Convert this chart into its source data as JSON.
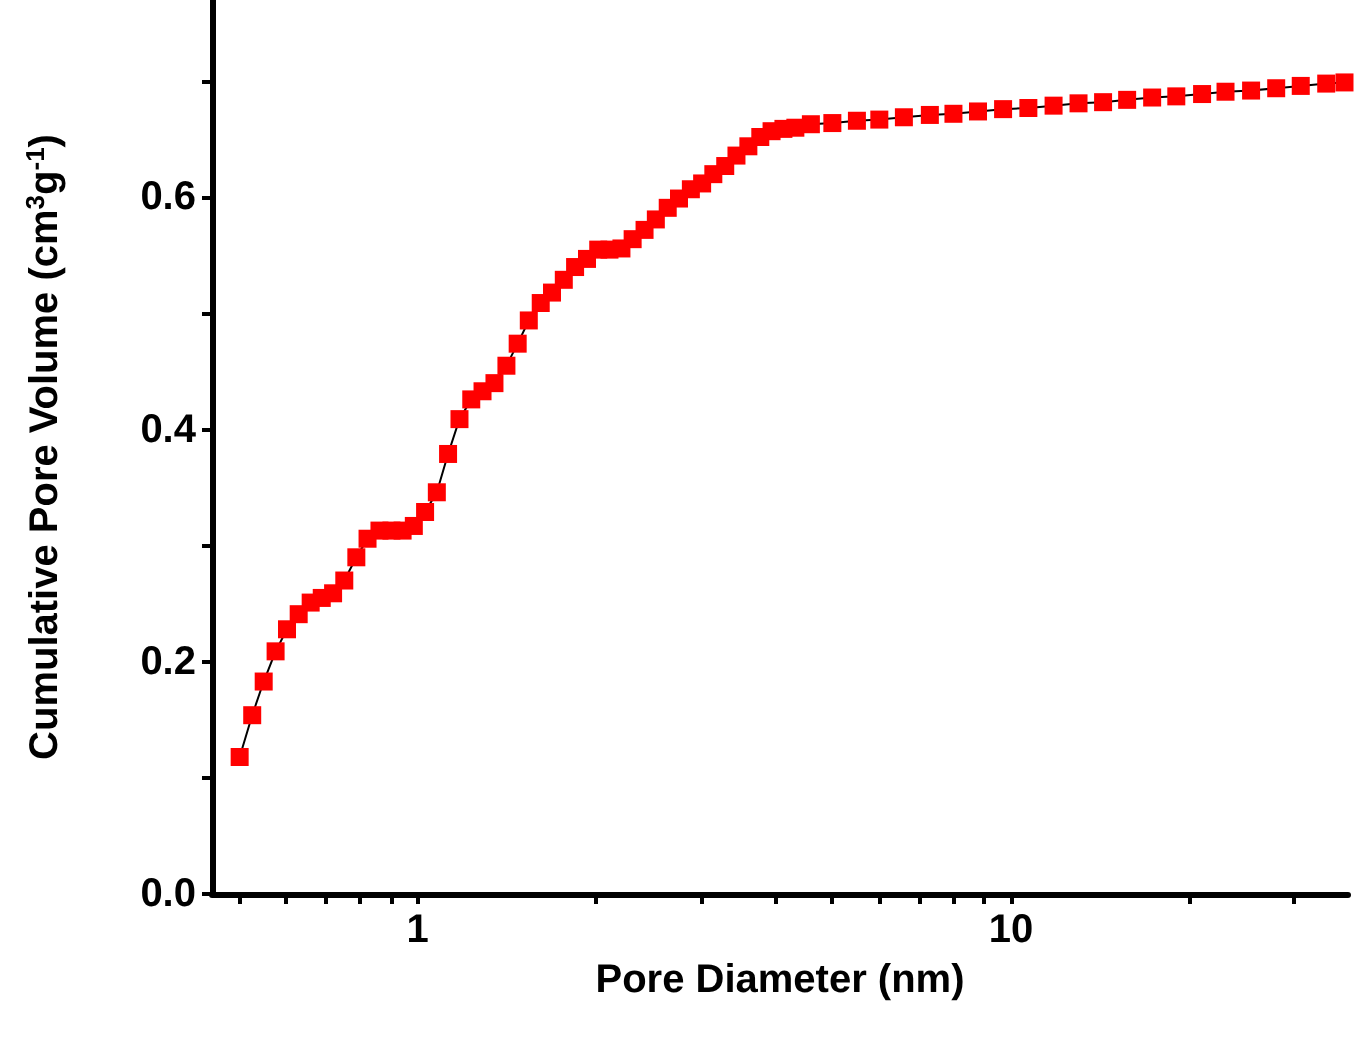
{
  "chart_data": {
    "type": "line",
    "xlabel": "Pore Diameter (nm)",
    "ylabel": "Cumulative Pore Volume (cm$^{3}$g$^{-1}$)",
    "log": "x",
    "marker": "square",
    "line_style": "solid",
    "grid": false,
    "xlim": [
      0.45,
      37
    ],
    "ylim": [
      0,
      0.77
    ],
    "xticks": [
      {
        "value": 0.5,
        "label": null
      },
      {
        "value": 0.6,
        "label": null
      },
      {
        "value": 0.7,
        "label": null
      },
      {
        "value": 0.8,
        "label": null
      },
      {
        "value": 0.9,
        "label": null
      },
      1,
      {
        "value": 2,
        "label": null
      },
      {
        "value": 3,
        "label": null
      },
      {
        "value": 4,
        "label": null
      },
      {
        "value": 5,
        "label": null
      },
      {
        "value": 6,
        "label": null
      },
      {
        "value": 7,
        "label": null
      },
      {
        "value": 8,
        "label": null
      },
      {
        "value": 9,
        "label": null
      },
      10,
      {
        "value": 20,
        "label": null
      },
      {
        "value": 30,
        "label": null
      }
    ],
    "yticks": [
      {
        "value": 0,
        "label": "0.0"
      },
      {
        "value": 0.1,
        "label": null
      },
      0.2,
      {
        "value": 0.3,
        "label": null
      },
      0.4,
      {
        "value": 0.5,
        "label": null
      },
      0.6,
      {
        "value": 0.7,
        "label": null
      }
    ],
    "series": [
      {
        "color": "#ff0000",
        "x": [
          0.501,
          0.526,
          0.55,
          0.576,
          0.602,
          0.63,
          0.66,
          0.689,
          0.72,
          0.752,
          0.788,
          0.823,
          0.862,
          0.903,
          0.943,
          0.985,
          1.029,
          1.077,
          1.125,
          1.176,
          1.231,
          1.286,
          1.347,
          1.411,
          1.474,
          1.539,
          1.612,
          1.684,
          1.763,
          1.842,
          1.929,
          2.015,
          2.105,
          2.205,
          2.303,
          2.412,
          2.52,
          2.639,
          2.757,
          2.887,
          3.016,
          3.15,
          3.299,
          3.446,
          3.609,
          3.78,
          3.949,
          4.135,
          4.331,
          4.6,
          5,
          5.5,
          6,
          6.6,
          7.3,
          8,
          8.8,
          9.7,
          10.7,
          11.8,
          13,
          14.3,
          15.7,
          17.3,
          19,
          21,
          23,
          25.4,
          28,
          30.8,
          34,
          36.5
        ],
        "values": [
          0.118,
          0.154,
          0.183,
          0.209,
          0.228,
          0.241,
          0.251,
          0.255,
          0.259,
          0.27,
          0.29,
          0.306,
          0.313,
          0.313,
          0.313,
          0.317,
          0.329,
          0.346,
          0.379,
          0.409,
          0.426,
          0.433,
          0.44,
          0.455,
          0.474,
          0.494,
          0.509,
          0.518,
          0.529,
          0.54,
          0.547,
          0.555,
          0.555,
          0.556,
          0.564,
          0.572,
          0.581,
          0.591,
          0.599,
          0.607,
          0.612,
          0.62,
          0.627,
          0.636,
          0.644,
          0.652,
          0.657,
          0.659,
          0.66,
          0.663,
          0.664,
          0.666,
          0.667,
          0.669,
          0.671,
          0.672,
          0.674,
          0.676,
          0.677,
          0.679,
          0.681,
          0.682,
          0.684,
          0.686,
          0.687,
          0.689,
          0.691,
          0.692,
          0.694,
          0.696,
          0.698,
          0.699
        ]
      }
    ]
  }
}
